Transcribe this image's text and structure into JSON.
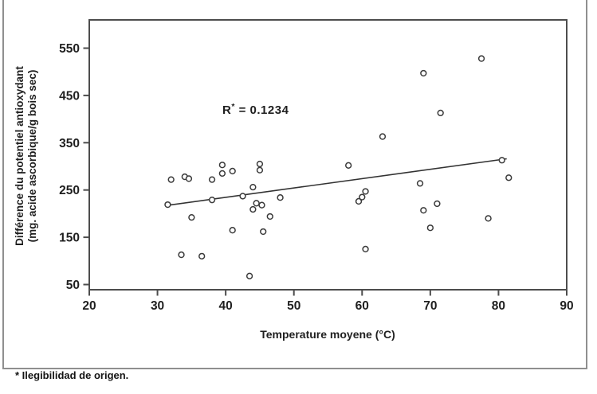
{
  "figure": {
    "annotation": {
      "base": "R",
      "sup": "*",
      "rest": " = 0.1234"
    },
    "footnote": "* Ilegibilidad de origen."
  },
  "chart_data": {
    "type": "scatter",
    "title": "",
    "xlabel": "Temperature moyene (°C)",
    "ylabel_line1": "Différence du potentiel antioxydant",
    "ylabel_line2": "(mg. acide ascorbique/g bois sec)",
    "xlim": [
      20,
      90
    ],
    "ylim": [
      50,
      550
    ],
    "x_ticks": [
      20,
      30,
      40,
      50,
      60,
      70,
      80,
      90
    ],
    "y_ticks": [
      550,
      450,
      350,
      250,
      150,
      50
    ],
    "grid": false,
    "legend": "none",
    "marker": "open-circle",
    "annotation_text": "R* = 0.1234",
    "points": [
      [
        31.5,
        219
      ],
      [
        32,
        272
      ],
      [
        33.5,
        113
      ],
      [
        34,
        278
      ],
      [
        34.6,
        274
      ],
      [
        35,
        192
      ],
      [
        36.5,
        110
      ],
      [
        38,
        272
      ],
      [
        38,
        229
      ],
      [
        39.5,
        303
      ],
      [
        39.5,
        285
      ],
      [
        41,
        290
      ],
      [
        41,
        165
      ],
      [
        42.5,
        237
      ],
      [
        43.5,
        68
      ],
      [
        44,
        209
      ],
      [
        44.5,
        222
      ],
      [
        45.3,
        218
      ],
      [
        44,
        256
      ],
      [
        45,
        305
      ],
      [
        45,
        292
      ],
      [
        45.5,
        162
      ],
      [
        46.5,
        194
      ],
      [
        48,
        234
      ],
      [
        58,
        302
      ],
      [
        59.5,
        226
      ],
      [
        60,
        235
      ],
      [
        60.5,
        247
      ],
      [
        60.5,
        125
      ],
      [
        63,
        363
      ],
      [
        68.5,
        264
      ],
      [
        69,
        207
      ],
      [
        69,
        497
      ],
      [
        70,
        170
      ],
      [
        71,
        221
      ],
      [
        71.5,
        413
      ],
      [
        77.5,
        528
      ],
      [
        78.5,
        190
      ],
      [
        80.5,
        313
      ],
      [
        81.5,
        276
      ]
    ],
    "trendline": {
      "x1": 31.7,
      "y1": 218,
      "x2": 81.2,
      "y2": 316
    },
    "colors": {
      "marker_stroke": "#3a3a3a",
      "trend_line": "#333333",
      "frame": "#4d4d4d",
      "text": "#1f1f1f",
      "outer_border": "#8f8f8f"
    }
  }
}
